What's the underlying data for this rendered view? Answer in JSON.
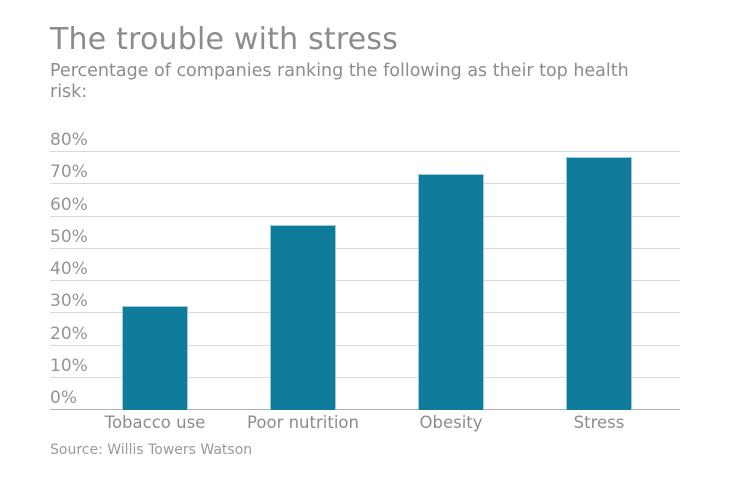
{
  "header": {
    "title": "The trouble with stress",
    "subtitle_lines": [
      "Percentage of companies ranking the following as their top health",
      "risk:"
    ]
  },
  "source": "Source: Willis Towers Watson",
  "colors": {
    "bar": "#0e7c9a",
    "bar_edge": "#9ecbdb",
    "gridline": "#d9d9d9",
    "baseline": "#b0b0b0",
    "title_text": "#8c8c8c",
    "axis_text": "#949494",
    "source_text": "#9a9a9a",
    "background": "#ffffff"
  },
  "chart_data": {
    "type": "bar",
    "title": "The trouble with stress",
    "subtitle": "Percentage of companies ranking the following as their top health risk:",
    "categories": [
      "Tobacco use",
      "Poor nutrition",
      "Obesity",
      "Stress"
    ],
    "values": [
      32,
      57,
      73,
      78
    ],
    "unit": "%",
    "xlabel": "",
    "ylabel": "",
    "ylim": [
      0,
      80
    ],
    "ytick_step": 10,
    "ytick_labels": [
      "0%",
      "10%",
      "20%",
      "30%",
      "40%",
      "50%",
      "60%",
      "70%",
      "80%"
    ],
    "grid": true,
    "legend_position": "none",
    "bar_color": "#0e7c9a",
    "source": "Source: Willis Towers Watson"
  }
}
